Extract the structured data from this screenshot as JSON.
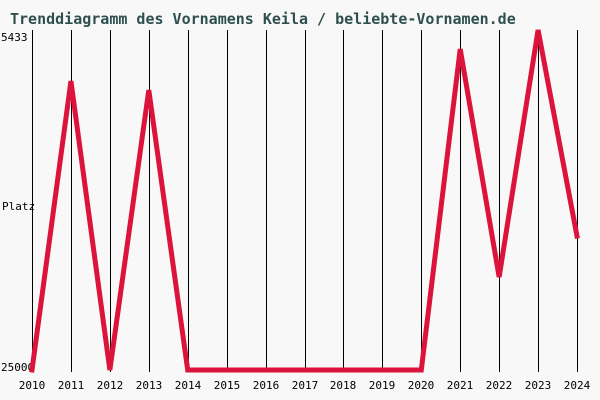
{
  "chart": {
    "title": "Trenddiagramm des Vornamens Keila / beliebte-Vornamen.de"
  },
  "chart_data": {
    "type": "line",
    "title": "Trenddiagramm des Vornamens Keila / beliebte-Vornamen.de",
    "x": [
      "2010",
      "2011",
      "2012",
      "2013",
      "2014",
      "2015",
      "2016",
      "2017",
      "2018",
      "2019",
      "2020",
      "2021",
      "2022",
      "2023",
      "2024"
    ],
    "values": [
      25000,
      8370,
      25000,
      8890,
      25000,
      25000,
      25000,
      25000,
      25000,
      25000,
      25000,
      6530,
      19650,
      5433,
      17290
    ],
    "xlabel": "",
    "ylabel": "Platz",
    "y_axis": {
      "top_label": "5433",
      "bottom_label": "25000",
      "range": [
        5433,
        25000
      ],
      "inverted": true,
      "note": "rank axis: best rank 5433 at top, 25000 at bottom"
    },
    "grid": "vertical-only",
    "legend": "none",
    "line_color": "#DC143C",
    "grid_color": "#000000",
    "title_color": "#2F4F4F",
    "background_color": "#F8F8F8"
  }
}
